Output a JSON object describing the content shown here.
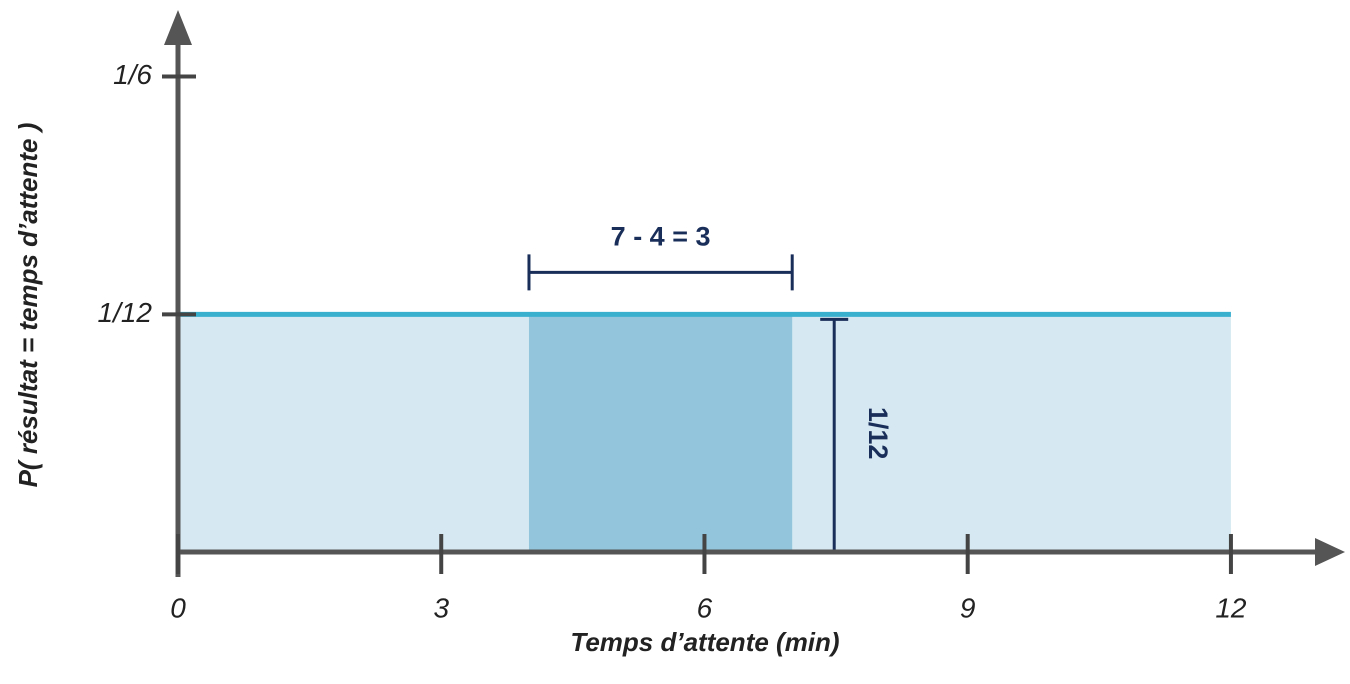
{
  "chart_data": {
    "type": "uniform",
    "x_label": "Temps d’attente (min)",
    "y_label": "P( résultat = temps d’attente )",
    "x": [
      0,
      12
    ],
    "values": [
      0.0833,
      0.0833
    ],
    "line_color": "#3ab0cf",
    "fill_color": "#d6e9f2",
    "highlight": {
      "x": [
        4,
        7
      ],
      "color": "#93c6dd"
    },
    "annotations": [
      "7 - 4 = 3",
      "1/12"
    ],
    "annotation_color": "#1a2e5a",
    "xlim": [
      0,
      13.3
    ],
    "xticks": [
      0,
      3,
      6,
      9,
      12
    ],
    "ylim": [
      0,
      0.19
    ],
    "yticks": [
      {
        "value": 0.0833,
        "label": "1/12"
      },
      {
        "value": 0.1667,
        "label": "1/6"
      }
    ]
  }
}
